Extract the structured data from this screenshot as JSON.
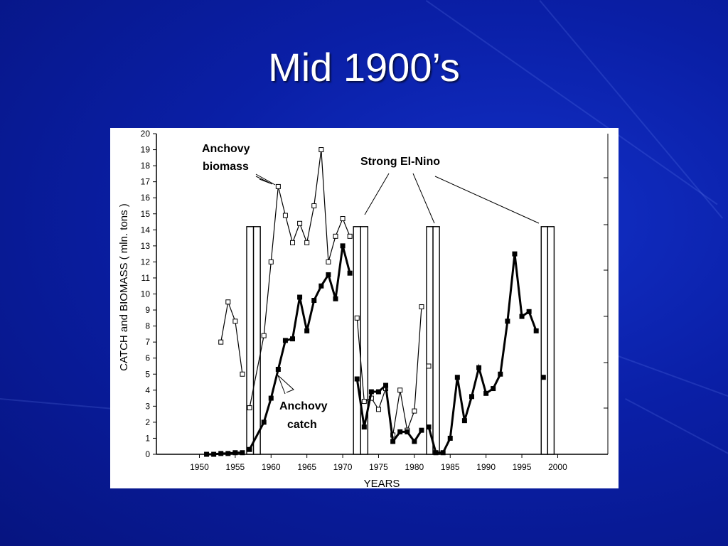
{
  "slide": {
    "title": "Mid 1900’s"
  },
  "chart_data": {
    "type": "line",
    "xlabel": "YEARS",
    "ylabel": "CATCH  and BIOMASS ( mln. tons )",
    "xlim": [
      1944,
      2007
    ],
    "ylim": [
      0,
      20
    ],
    "x_ticks": [
      1950,
      1955,
      1960,
      1965,
      1970,
      1975,
      1980,
      1985,
      1990,
      1995,
      2000
    ],
    "y_ticks": [
      0,
      1,
      2,
      3,
      4,
      5,
      6,
      7,
      8,
      9,
      10,
      11,
      12,
      13,
      14,
      15,
      16,
      17,
      18,
      19,
      20
    ],
    "series": [
      {
        "name": "Anchovy biomass",
        "marker": "open-square",
        "x": [
          1953,
          1954,
          1955,
          1956,
          1957,
          1959,
          1960,
          1961,
          1962,
          1963,
          1964,
          1965,
          1966,
          1967,
          1968,
          1969,
          1970,
          1971,
          1972,
          1973,
          1974,
          1975,
          1976,
          1977,
          1978,
          1979,
          1980,
          1981,
          1982
        ],
        "y": [
          7.0,
          9.5,
          8.3,
          5.0,
          2.9,
          7.4,
          12.0,
          16.7,
          14.9,
          13.2,
          14.4,
          13.2,
          15.5,
          19.0,
          12.0,
          13.6,
          14.7,
          13.6,
          8.5,
          3.3,
          3.5,
          2.8,
          4.1,
          1.2,
          4.0,
          1.5,
          2.7,
          9.2,
          5.5
        ]
      },
      {
        "name": "Anchovy catch",
        "marker": "filled-square",
        "x": [
          1951,
          1952,
          1953,
          1954,
          1955,
          1956,
          1957,
          1959,
          1960,
          1961,
          1962,
          1963,
          1964,
          1965,
          1966,
          1967,
          1968,
          1969,
          1970,
          1971,
          1972,
          1973,
          1974,
          1975,
          1976,
          1977,
          1978,
          1979,
          1980,
          1981,
          1982,
          1983,
          1984,
          1985,
          1986,
          1987,
          1988,
          1989,
          1990,
          1991,
          1992,
          1993,
          1994,
          1995,
          1996,
          1997,
          1998
        ],
        "y": [
          0.0,
          0.0,
          0.05,
          0.05,
          0.1,
          0.1,
          0.3,
          2.0,
          3.5,
          5.3,
          7.1,
          7.2,
          9.8,
          7.7,
          9.6,
          10.5,
          11.2,
          9.7,
          13.0,
          11.3,
          4.7,
          1.7,
          3.9,
          3.9,
          4.3,
          0.8,
          1.4,
          1.4,
          0.8,
          1.5,
          1.7,
          0.1,
          0.1,
          1.0,
          4.8,
          2.1,
          3.6,
          5.4,
          3.8,
          4.1,
          5.0,
          8.3,
          12.5,
          8.6,
          8.9,
          7.7,
          4.8
        ]
      }
    ],
    "el_nino_periods": [
      {
        "x0": 1956.6,
        "x1": 1958.5,
        "top": 14.2
      },
      {
        "x0": 1971.5,
        "x1": 1973.5,
        "top": 14.2
      },
      {
        "x0": 1981.7,
        "x1": 1983.5,
        "top": 14.2
      },
      {
        "x0": 1997.7,
        "x1": 1999.5,
        "top": 14.2
      }
    ],
    "annotations": {
      "biomass_label_line1": "Anchovy",
      "biomass_label_line2": "biomass",
      "catch_label_line1": "Anchovy",
      "catch_label_line2": "catch",
      "el_nino_label": "Strong  El-Nino"
    }
  }
}
